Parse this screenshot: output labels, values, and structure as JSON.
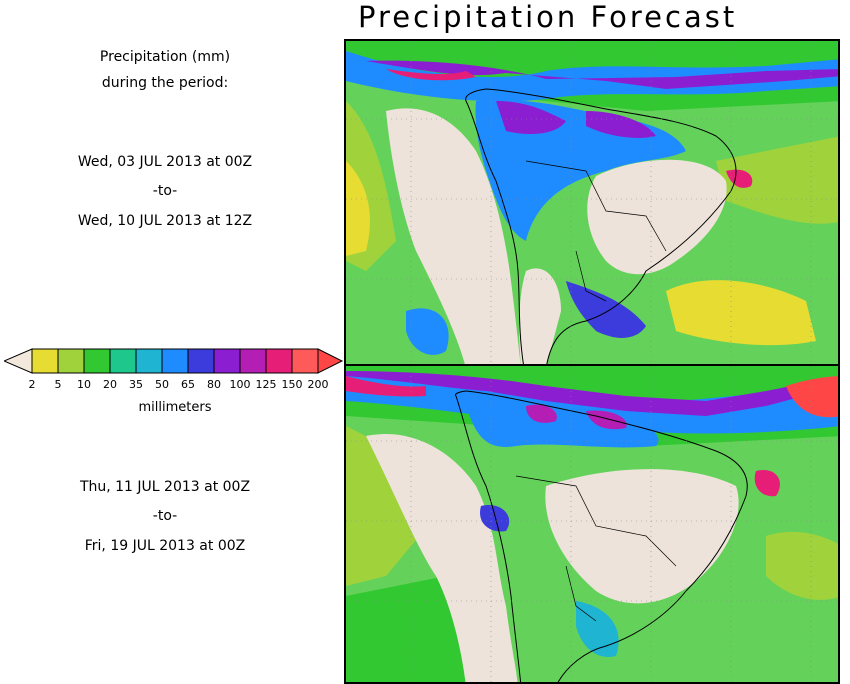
{
  "title": "Precipitation Forecast",
  "period_label": [
    "Precipitation (mm)",
    "during the period:"
  ],
  "period1": {
    "start": "Wed, 03 JUL 2013 at 00Z",
    "sep": "-to-",
    "end": "Wed, 10 JUL 2013 at 12Z"
  },
  "period2": {
    "start": "Thu, 11 JUL 2013 at 00Z",
    "sep": "-to-",
    "end": "Fri, 19 JUL 2013 at 00Z"
  },
  "legend": {
    "unit": "millimeters",
    "ticks": [
      "2",
      "5",
      "10",
      "20",
      "35",
      "50",
      "65",
      "80",
      "100",
      "125",
      "150",
      "200"
    ],
    "colors": [
      "#e6dc32",
      "#a0d23c",
      "#32c832",
      "#1ec88c",
      "#1eb4d2",
      "#1e8cff",
      "#3c3cdc",
      "#8c1ed2",
      "#b41eb4",
      "#e61e78",
      "#ff5a5a"
    ],
    "below_color": "#f2e8dc",
    "above_color": "#ff4646"
  },
  "map_colors": {
    "land_dry": "#ede3da",
    "ocean": "#64d25a",
    "green": "#32c832",
    "teal": "#1ec88c",
    "yellow": "#e6dc32",
    "lime": "#a0d23c",
    "blue": "#1e8cff",
    "purple": "#8c1ed2",
    "magenta": "#b41eb4",
    "red": "#ff4646"
  }
}
